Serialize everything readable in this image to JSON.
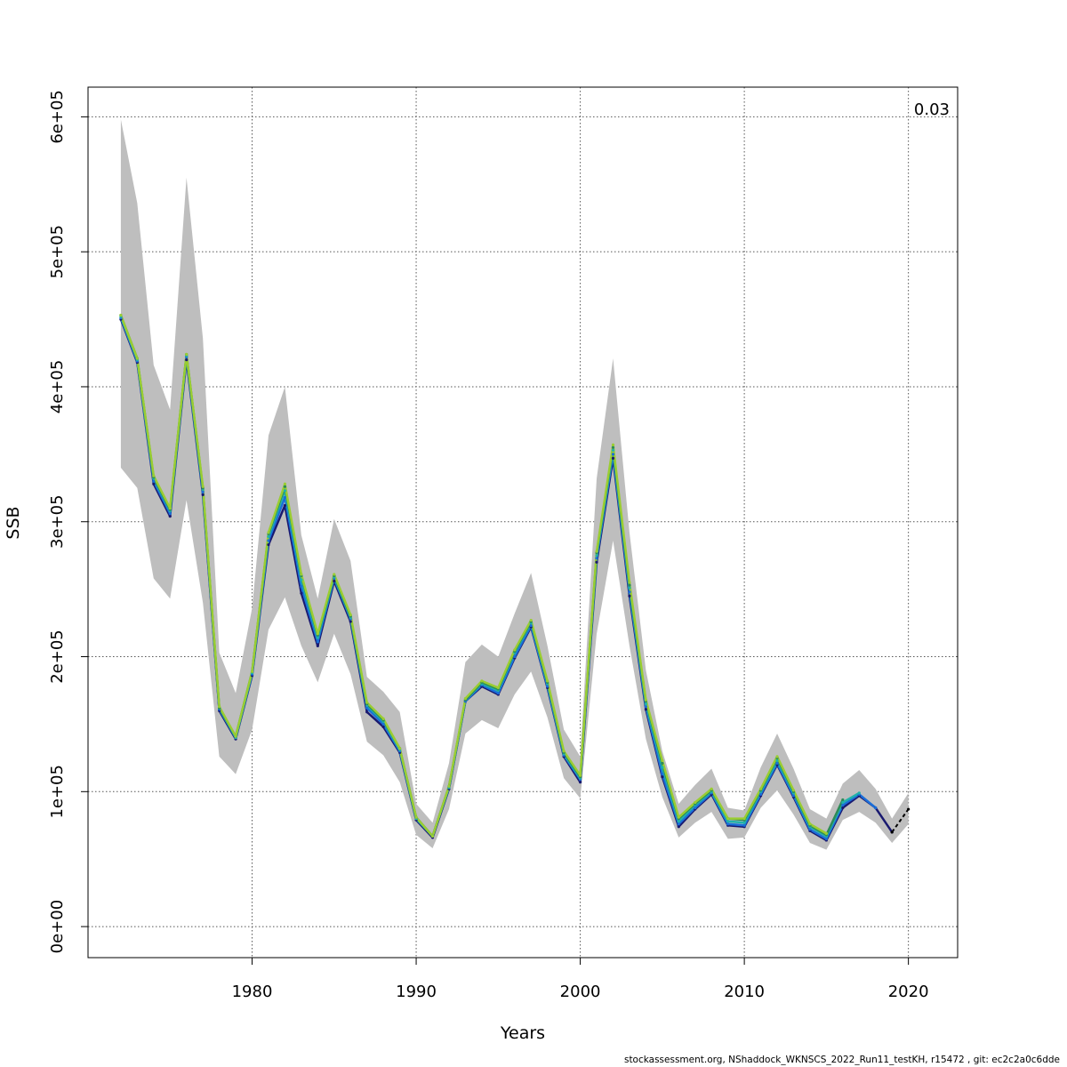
{
  "chart_data": {
    "type": "line",
    "xlabel": "Years",
    "ylabel": "SSB",
    "corner_label": "0.03",
    "footer": "stockassessment.org, NShaddock_WKNSCS_2022_Run11_testKH, r15472 , git: ec2c2a0c6dde",
    "xlim": [
      1970,
      2023
    ],
    "ylim": [
      -23000,
      622000
    ],
    "x_ticks": [
      1980,
      1990,
      2000,
      2010,
      2020
    ],
    "y_ticks": [
      0,
      100000,
      200000,
      300000,
      400000,
      500000,
      600000
    ],
    "y_tick_labels": [
      "0e+00",
      "1e+05",
      "2e+05",
      "3e+05",
      "4e+05",
      "5e+05",
      "6e+05"
    ],
    "grid": true,
    "band": {
      "x": [
        1972,
        1973,
        1974,
        1975,
        1976,
        1977,
        1978,
        1979,
        1980,
        1981,
        1982,
        1983,
        1984,
        1985,
        1986,
        1987,
        1988,
        1989,
        1990,
        1991,
        1992,
        1993,
        1994,
        1995,
        1996,
        1997,
        1998,
        1999,
        2000,
        2001,
        2002,
        2003,
        2004,
        2005,
        2006,
        2007,
        2008,
        2009,
        2010,
        2011,
        2012,
        2013,
        2014,
        2015,
        2016,
        2017,
        2018,
        2019,
        2020
      ],
      "upper": [
        598000,
        536000,
        416000,
        383000,
        555000,
        436000,
        203000,
        173000,
        236000,
        364000,
        400000,
        290000,
        243000,
        302000,
        271000,
        185000,
        174000,
        159000,
        91000,
        77000,
        121000,
        196000,
        209000,
        200000,
        232000,
        262000,
        208000,
        146000,
        126000,
        332000,
        421000,
        292000,
        190000,
        130000,
        91000,
        105000,
        117000,
        88000,
        86000,
        118000,
        143000,
        117000,
        87000,
        80000,
        106000,
        116000,
        102000,
        80000,
        99000
      ],
      "lower": [
        340000,
        325000,
        258000,
        243000,
        316000,
        240000,
        126000,
        113000,
        146000,
        220000,
        244000,
        208000,
        181000,
        217000,
        187000,
        137000,
        127000,
        107000,
        68000,
        58000,
        87000,
        143000,
        153000,
        147000,
        172000,
        189000,
        155000,
        110000,
        95000,
        217000,
        286000,
        208000,
        139000,
        96000,
        66000,
        77000,
        85000,
        65000,
        66000,
        88000,
        101000,
        83000,
        62000,
        57000,
        79000,
        85000,
        77000,
        62000,
        76000
      ]
    },
    "series": [
      {
        "color": "#191970",
        "x": [
          1972,
          1973,
          1974,
          1975,
          1976,
          1977,
          1978,
          1979,
          1980,
          1981,
          1982,
          1983,
          1984,
          1985,
          1986,
          1987,
          1988,
          1989,
          1990,
          1991,
          1992,
          1993,
          1994,
          1995,
          1996,
          1997,
          1998,
          1999,
          2000,
          2001,
          2002,
          2003,
          2004,
          2005,
          2006,
          2007,
          2008,
          2009,
          2010,
          2011,
          2012,
          2013,
          2014,
          2015,
          2016,
          2017,
          2018,
          2019
        ],
        "values": [
          450000,
          418000,
          328000,
          304000,
          420000,
          320000,
          160000,
          139000,
          186000,
          283000,
          312000,
          247000,
          208000,
          256000,
          226000,
          159000,
          148000,
          129000,
          79000,
          66000,
          102000,
          167000,
          178000,
          172000,
          199000,
          222000,
          177000,
          126000,
          107000,
          270000,
          347000,
          245000,
          161000,
          111000,
          74000,
          87000,
          98000,
          75000,
          74000,
          97000,
          120000,
          96000,
          71000,
          64000,
          88000,
          97000,
          88000,
          70000
        ]
      },
      {
        "color": "#1a6ed8",
        "x": [
          1972,
          1973,
          1974,
          1975,
          1976,
          1977,
          1978,
          1979,
          1980,
          1981,
          1982,
          1983,
          1984,
          1985,
          1986,
          1987,
          1988,
          1989,
          1990,
          1991,
          1992,
          1993,
          1994,
          1995,
          1996,
          1997,
          1998,
          1999,
          2000,
          2001,
          2002,
          2003,
          2004,
          2005,
          2006,
          2007,
          2008,
          2009,
          2010,
          2011,
          2012,
          2013,
          2014,
          2015,
          2016,
          2017,
          2018
        ],
        "values": [
          451000,
          419000,
          330000,
          306000,
          422000,
          322000,
          161000,
          140000,
          187000,
          286000,
          318000,
          252000,
          211000,
          258000,
          228000,
          162000,
          150000,
          130000,
          80000,
          67000,
          103000,
          167000,
          179000,
          173000,
          200000,
          223000,
          178000,
          127000,
          109000,
          273000,
          350000,
          248000,
          163000,
          113000,
          76000,
          88000,
          99000,
          76000,
          75000,
          98000,
          121000,
          97000,
          72000,
          65000,
          90000,
          98000,
          88000
        ]
      },
      {
        "color": "#20b2aa",
        "x": [
          1972,
          1973,
          1974,
          1975,
          1976,
          1977,
          1978,
          1979,
          1980,
          1981,
          1982,
          1983,
          1984,
          1985,
          1986,
          1987,
          1988,
          1989,
          1990,
          1991,
          1992,
          1993,
          1994,
          1995,
          1996,
          1997,
          1998,
          1999,
          2000,
          2001,
          2002,
          2003,
          2004,
          2005,
          2006,
          2007,
          2008,
          2009,
          2010,
          2011,
          2012,
          2013,
          2014,
          2015,
          2016,
          2017
        ],
        "values": [
          452000,
          420000,
          332000,
          308000,
          423000,
          324000,
          162000,
          140000,
          188000,
          289000,
          323000,
          257000,
          214000,
          259000,
          229000,
          164000,
          152000,
          131000,
          80000,
          67000,
          103000,
          168000,
          180000,
          175000,
          203000,
          225000,
          180000,
          128000,
          110000,
          275000,
          353000,
          251000,
          165000,
          118000,
          78000,
          90000,
          100000,
          78000,
          77000,
          100000,
          123000,
          99000,
          74000,
          67000,
          92000,
          99000
        ]
      },
      {
        "color": "#2e8b57",
        "x": [
          1972,
          1973,
          1974,
          1975,
          1976,
          1977,
          1978,
          1979,
          1980,
          1981,
          1982,
          1983,
          1984,
          1985,
          1986,
          1987,
          1988,
          1989,
          1990,
          1991,
          1992,
          1993,
          1994,
          1995,
          1996,
          1997,
          1998,
          1999,
          2000,
          2001,
          2002,
          2003,
          2004,
          2005,
          2006,
          2007,
          2008,
          2009,
          2010,
          2011,
          2012,
          2013,
          2014,
          2015,
          2016
        ],
        "values": [
          453000,
          421000,
          333000,
          309000,
          424000,
          325000,
          162000,
          141000,
          189000,
          291000,
          326000,
          260000,
          216000,
          260000,
          230000,
          165000,
          153000,
          132000,
          81000,
          67000,
          104000,
          168000,
          181000,
          176000,
          204000,
          226000,
          181000,
          129000,
          111000,
          277000,
          355000,
          253000,
          167000,
          121000,
          80000,
          91000,
          101000,
          80000,
          79000,
          101000,
          125000,
          100000,
          75000,
          68000,
          94000
        ]
      },
      {
        "color": "#9acd32",
        "x": [
          1972,
          1973,
          1974,
          1975,
          1976,
          1977,
          1978,
          1979,
          1980,
          1981,
          1982,
          1983,
          1984,
          1985,
          1986,
          1987,
          1988,
          1989,
          1990,
          1991,
          1992,
          1993,
          1994,
          1995,
          1996,
          1997,
          1998,
          1999,
          2000,
          2001,
          2002,
          2003,
          2004,
          2005,
          2006,
          2007,
          2008,
          2009,
          2010,
          2011,
          2012,
          2013,
          2014,
          2015
        ],
        "values": [
          453000,
          421000,
          334000,
          310000,
          424000,
          326000,
          163000,
          141000,
          189000,
          292000,
          328000,
          261000,
          217000,
          261000,
          231000,
          166000,
          154000,
          132000,
          81000,
          67000,
          104000,
          169000,
          182000,
          177000,
          205000,
          227000,
          182000,
          130000,
          112000,
          278000,
          357000,
          255000,
          168000,
          123000,
          81000,
          92000,
          102000,
          80000,
          80000,
          102000,
          126000,
          101000,
          76000,
          69000
        ]
      }
    ],
    "dashed_series": {
      "color": "#000000",
      "x": [
        2019,
        2020
      ],
      "values": [
        70000,
        87000
      ]
    }
  }
}
